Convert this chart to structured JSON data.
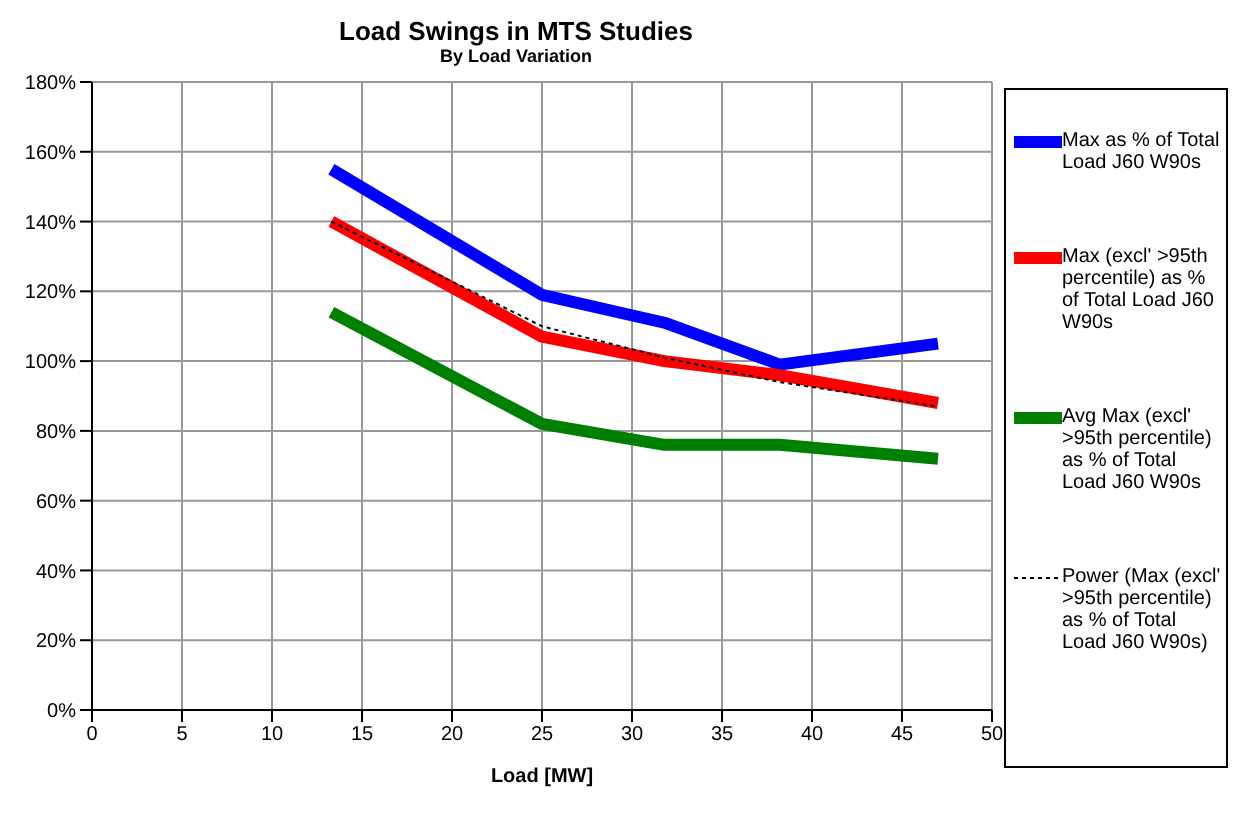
{
  "chart_data": {
    "type": "line",
    "title": "Load Swings in MTS Studies",
    "subtitle": "By Load Variation",
    "xlabel": "Load [MW]",
    "x": [
      13.3,
      25,
      31.8,
      38.2,
      47
    ],
    "series": [
      {
        "name": "Max as % of Total Load J60 W90s",
        "color": "#0000ff",
        "values": [
          155,
          119,
          111,
          99,
          105
        ]
      },
      {
        "name": "Max (excl' >95th percentile) as % of Total Load J60 W90s",
        "color": "#ff0000",
        "values": [
          140,
          107,
          100,
          96,
          88
        ]
      },
      {
        "name": "Avg Max (excl' >95th percentile) as % of Total Load J60 W90s",
        "color": "#008000",
        "values": [
          114,
          82,
          76,
          76,
          72
        ]
      },
      {
        "name": "Power (Max (excl' >95th percentile) as % of Total Load J60 W90s)",
        "color": "#000000",
        "line_style": "dotted",
        "values": [
          140,
          110,
          101,
          94,
          87
        ]
      }
    ],
    "xlim": [
      0,
      50
    ],
    "xticks": [
      0,
      5,
      10,
      15,
      20,
      25,
      30,
      35,
      40,
      45,
      50
    ],
    "ylim": [
      0,
      180
    ],
    "yticks": [
      {
        "value": 0,
        "label": "0%"
      },
      {
        "value": 20,
        "label": "20%"
      },
      {
        "value": 40,
        "label": "40%"
      },
      {
        "value": 60,
        "label": "60%"
      },
      {
        "value": 80,
        "label": "80%"
      },
      {
        "value": 100,
        "label": "100%"
      },
      {
        "value": 120,
        "label": "120%"
      },
      {
        "value": 140,
        "label": "140%"
      },
      {
        "value": 160,
        "label": "160%"
      },
      {
        "value": 180,
        "label": "180%"
      }
    ],
    "grid": true,
    "legend": "right",
    "marker": "none",
    "line_style": "solid"
  }
}
